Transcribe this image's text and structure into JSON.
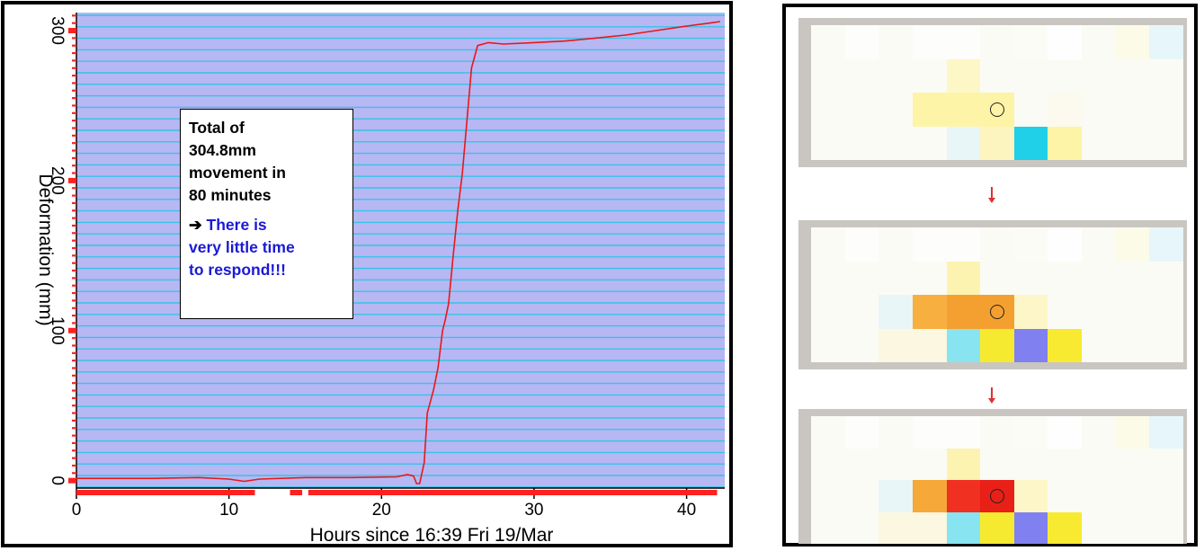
{
  "chart_data": {
    "type": "line",
    "xlabel": "Hours since 16:39 Fri 19/Mar",
    "ylabel": "Deformation (mm)",
    "xlim": [
      0,
      42.5
    ],
    "ylim": [
      -5,
      312
    ],
    "xticks": [
      0,
      10,
      20,
      30,
      40
    ],
    "yticks": [
      0,
      100,
      200,
      300
    ],
    "grid": true,
    "series": [
      {
        "color": "#e81818",
        "x": [
          0,
          2,
          5,
          8,
          10,
          11,
          12,
          15,
          18,
          21,
          21.7,
          22.1,
          22.3,
          22.5,
          22.8,
          23.0,
          23.4,
          23.7,
          24.0,
          24.2,
          24.4,
          24.7,
          25.0,
          25.3,
          25.6,
          25.9,
          26.3,
          27,
          28,
          30,
          32,
          34,
          36,
          38,
          40,
          41.5,
          42.2
        ],
        "y": [
          1.5,
          1.5,
          1.5,
          2.0,
          1.0,
          -0.5,
          1.0,
          2.0,
          2.0,
          2.5,
          4,
          3,
          -2,
          -2,
          12,
          45,
          60,
          75,
          100,
          108,
          118,
          150,
          180,
          205,
          240,
          275,
          290,
          292,
          291,
          292,
          293,
          295,
          297,
          300,
          303,
          305,
          306
        ]
      }
    ],
    "data_gap_bars": [
      [
        0,
        11.7
      ],
      [
        14,
        14.8
      ],
      [
        15.2,
        42
      ]
    ]
  },
  "callout": {
    "main_lines": [
      "Total of",
      "304.8mm",
      "movement in",
      "80 minutes"
    ],
    "arrow_glyph": "➔",
    "highlight_lines": [
      "There is",
      "very little time",
      "to respond!!!"
    ]
  },
  "heatmaps": [
    {
      "cells": [
        [
          "#fbfbf5",
          "#fdfdfb",
          "#fbfbf5",
          "#fdfdfb",
          "#fdfdfb",
          "#fbfbf5",
          "#fcfcf6",
          "#fefefe",
          "#fbfbf5",
          "#fcfbe8",
          "#e7f6fa"
        ],
        [
          "#fbfbf5",
          "#fbfbf5",
          "#fbfbf5",
          "#fbfbf5",
          "#fdf7c8",
          "#fbfbf5",
          "#fbfbf5",
          "#fbfbf5",
          "#fbfbf5",
          "#fbfbf5",
          "#fbfbf5"
        ],
        [
          "#fbfbf5",
          "#fbfbf5",
          "#fbfbf5",
          "#fdf4a8",
          "#fdf4a8",
          "#fdf4a8",
          "#fbfbf5",
          "#fcfaee",
          "#fbfbf5",
          "#fbfbf5",
          "#fbfbf5"
        ],
        [
          "#fbfbf5",
          "#fbfbf5",
          "#fbfbf5",
          "#fbfbf5",
          "#e9f6f8",
          "#fdf5c0",
          "#1fd0e8",
          "#fdf4a8",
          "#fbfbf5",
          "#fbfbf5",
          "#fbfbf5"
        ]
      ],
      "marker": [
        2,
        5
      ]
    },
    {
      "cells": [
        [
          "#fbfbf5",
          "#fdfdfb",
          "#fbfbf5",
          "#fdfdfb",
          "#fdfdfb",
          "#fbfbf5",
          "#fcfcf6",
          "#fefefe",
          "#fbfbf5",
          "#fcfbe8",
          "#e7f6fa"
        ],
        [
          "#fbfbf5",
          "#fbfbf5",
          "#fbfbf5",
          "#fbfbf5",
          "#fdf3b0",
          "#fbfbf5",
          "#fbfbf5",
          "#fbfbf5",
          "#fbfbf5",
          "#fbfbf5",
          "#fbfbf5"
        ],
        [
          "#fbfbf5",
          "#fbfbf5",
          "#e8f6f8",
          "#f7b040",
          "#f4a030",
          "#f4a030",
          "#fdf6c8",
          "#fbfbf5",
          "#fbfbf5",
          "#fbfbf5",
          "#fbfbf5"
        ],
        [
          "#fbfbf5",
          "#fbfbf5",
          "#fcf7e0",
          "#fcf7e0",
          "#88e4f0",
          "#f6ea30",
          "#8080f0",
          "#f8ea30",
          "#fbfbf5",
          "#fbfbf5",
          "#fbfbf5"
        ]
      ],
      "marker": [
        2,
        5
      ]
    },
    {
      "cells": [
        [
          "#fbfbf5",
          "#fdfdfb",
          "#fbfbf5",
          "#fdfdfb",
          "#fdfdfb",
          "#fbfbf5",
          "#fcfcf6",
          "#fefefe",
          "#fbfbf5",
          "#fcfbe8",
          "#e7f6fa"
        ],
        [
          "#fbfbf5",
          "#fbfbf5",
          "#fbfbf5",
          "#fbfbf5",
          "#fdf3b0",
          "#fbfbf5",
          "#fbfbf5",
          "#fbfbf5",
          "#fbfbf5",
          "#fbfbf5",
          "#fbfbf5"
        ],
        [
          "#fbfbf5",
          "#fbfbf5",
          "#e8f6f8",
          "#f6a838",
          "#f03020",
          "#e82018",
          "#fdf6c8",
          "#fbfbf5",
          "#fbfbf5",
          "#fbfbf5",
          "#fbfbf5"
        ],
        [
          "#fbfbf5",
          "#fbfbf5",
          "#fcf7e0",
          "#fcf7e0",
          "#88e4f0",
          "#f6ea30",
          "#8080f0",
          "#f8ea30",
          "#fbfbf5",
          "#fbfbf5",
          "#fbfbf5"
        ]
      ],
      "marker": [
        2,
        5
      ]
    }
  ],
  "colors": {
    "plot_bg": "#b7b7f3",
    "grid": "#37c4e6",
    "line": "#e81818",
    "tick": "#ff2020"
  }
}
